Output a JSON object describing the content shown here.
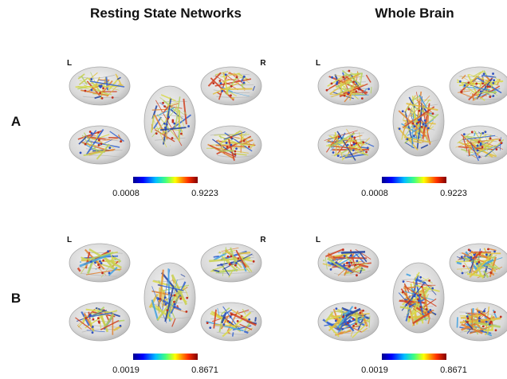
{
  "columns": [
    "Resting State Networks",
    "Whole Brain"
  ],
  "rows": [
    {
      "label": "A",
      "panels": [
        {
          "hemispheres": [
            "L",
            "R"
          ],
          "colorbar": {
            "min": "0.0008",
            "max": "0.9223"
          }
        },
        {
          "hemispheres": [
            "L"
          ],
          "colorbar": {
            "min": "0.0008",
            "max": "0.9223"
          }
        }
      ]
    },
    {
      "label": "B",
      "panels": [
        {
          "hemispheres": [
            "L",
            "R"
          ],
          "colorbar": {
            "min": "0.0019",
            "max": "0.8671"
          }
        },
        {
          "hemispheres": [
            "L"
          ],
          "colorbar": {
            "min": "0.0019",
            "max": "0.8671"
          }
        }
      ]
    }
  ]
}
